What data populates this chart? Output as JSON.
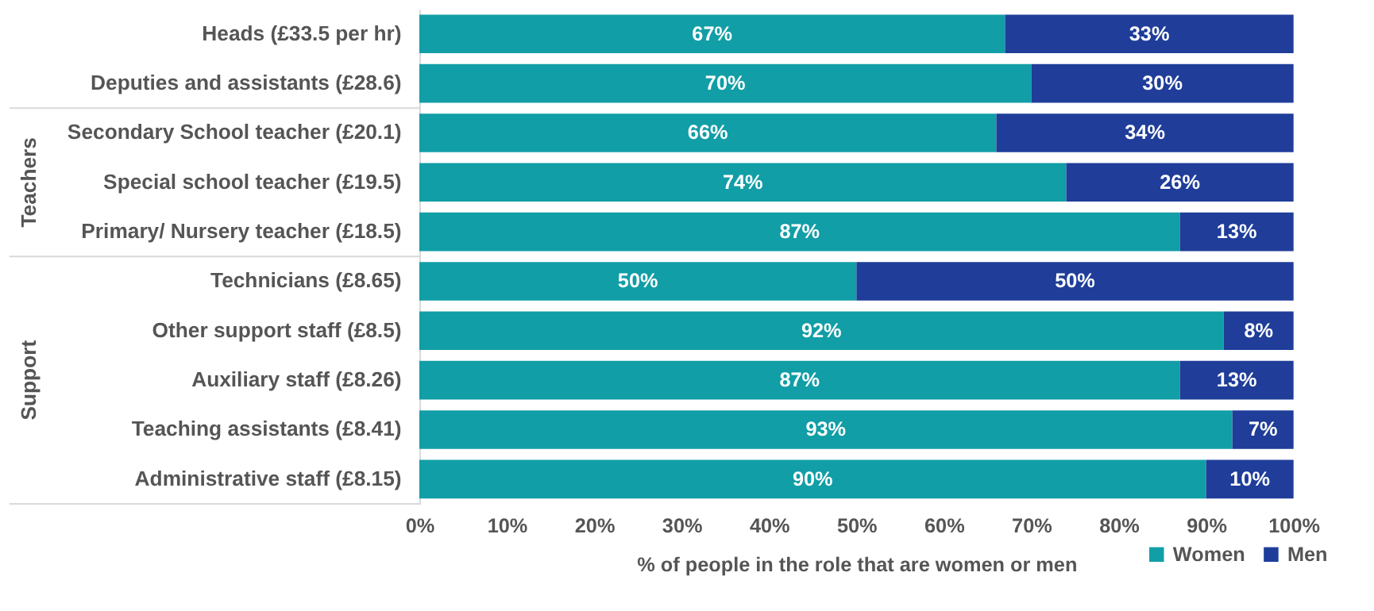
{
  "chart_data": {
    "type": "bar",
    "orientation": "horizontal",
    "stacked": true,
    "categories": [
      "Heads (£33.5 per hr)",
      "Deputies and assistants (£28.6)",
      "Secondary School teacher (£20.1)",
      "Special school teacher (£19.5)",
      "Primary/ Nursery teacher (£18.5)",
      "Technicians (£8.65)",
      "Other support staff (£8.5)",
      "Auxiliary staff (£8.26)",
      "Teaching assistants (£8.41)",
      "Administrative staff (£8.15)"
    ],
    "series": [
      {
        "name": "Women",
        "color": "#119ea6",
        "values": [
          67,
          70,
          66,
          74,
          87,
          50,
          92,
          87,
          93,
          90
        ],
        "value_labels": [
          "67%",
          "70%",
          "66%",
          "74%",
          "87%",
          "50%",
          "92%",
          "87%",
          "93%",
          "90%"
        ]
      },
      {
        "name": "Men",
        "color": "#1f3d99",
        "values": [
          33,
          30,
          34,
          26,
          13,
          50,
          8,
          13,
          7,
          10
        ],
        "value_labels": [
          "33%",
          "30%",
          "34%",
          "26%",
          "13%",
          "50%",
          "8%",
          "13%",
          "7%",
          "10%"
        ]
      }
    ],
    "xlim": [
      0,
      100
    ],
    "xticks": [
      {
        "value": 0,
        "label": "0%"
      },
      {
        "value": 10,
        "label": "10%"
      },
      {
        "value": 20,
        "label": "20%"
      },
      {
        "value": 30,
        "label": "30%"
      },
      {
        "value": 40,
        "label": "40%"
      },
      {
        "value": 50,
        "label": "50%"
      },
      {
        "value": 60,
        "label": "60%"
      },
      {
        "value": 70,
        "label": "70%"
      },
      {
        "value": 80,
        "label": "80%"
      },
      {
        "value": 90,
        "label": "90%"
      },
      {
        "value": 100,
        "label": "100%"
      }
    ],
    "xlabel": "% of people in the role that are women or men",
    "annotations": [
      "Teachers",
      "Support"
    ],
    "legend": "bottom right",
    "grid": false
  }
}
